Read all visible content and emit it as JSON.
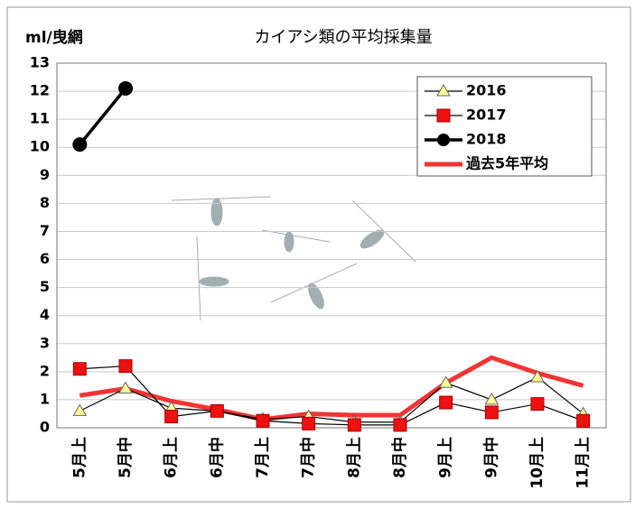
{
  "chart_data": {
    "type": "line",
    "title": "カイアシ類の平均採集量",
    "y_label": "ml/曳網",
    "categories": [
      "5月上",
      "5月中",
      "6月上",
      "6月中",
      "7月上",
      "7月中",
      "8月上",
      "8月中",
      "9月上",
      "9月中",
      "10月上",
      "11月上"
    ],
    "series": [
      {
        "name": "2016",
        "color": "#ffff99",
        "marker": "triangle",
        "values": [
          0.6,
          1.4,
          0.7,
          0.6,
          0.3,
          0.4,
          0.2,
          0.2,
          1.6,
          1.0,
          1.8,
          0.5
        ]
      },
      {
        "name": "2017",
        "color": "#ee1111",
        "marker": "square",
        "values": [
          2.1,
          2.2,
          0.4,
          0.6,
          0.25,
          0.15,
          0.1,
          0.1,
          0.9,
          0.55,
          0.85,
          0.25
        ]
      },
      {
        "name": "2018",
        "color": "#000000",
        "marker": "circle",
        "values": [
          10.1,
          12.1,
          null,
          null,
          null,
          null,
          null,
          null,
          null,
          null,
          null,
          null
        ]
      },
      {
        "name": "過去5年平均",
        "color": "#ee1111",
        "marker": "none",
        "values": [
          1.15,
          1.4,
          0.95,
          0.65,
          0.3,
          0.5,
          0.45,
          0.45,
          1.6,
          2.5,
          1.95,
          1.5
        ]
      }
    ],
    "ylim": [
      0,
      13
    ],
    "yticks": [
      0,
      1,
      2,
      3,
      4,
      5,
      6,
      7,
      8,
      9,
      10,
      11,
      12,
      13
    ],
    "grid": true,
    "legend": "upper right"
  }
}
